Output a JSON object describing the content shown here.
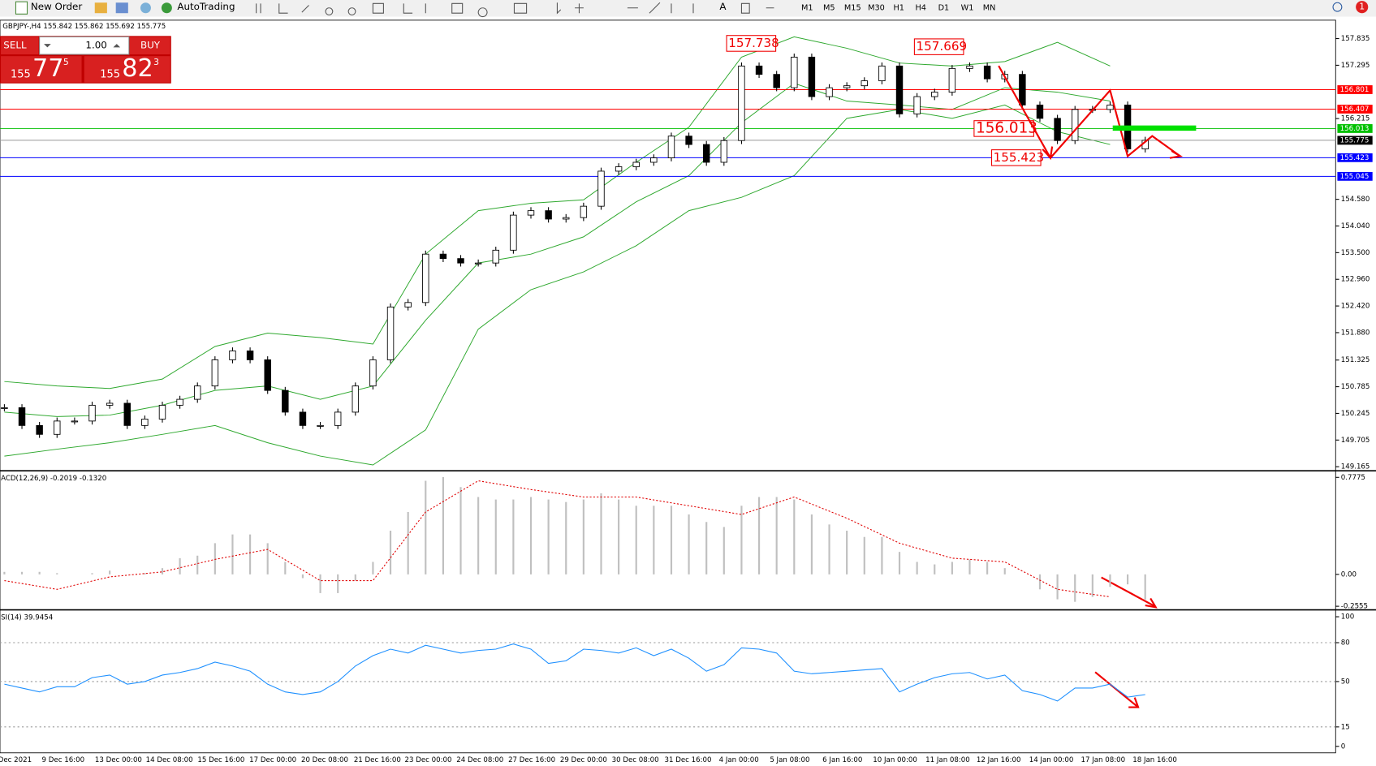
{
  "toolbar": {
    "new_order": "New Order",
    "auto_trading": "AutoTrading",
    "timeframes": [
      "M1",
      "M5",
      "M15",
      "M30",
      "H1",
      "H4",
      "D1",
      "W1",
      "MN"
    ],
    "notifications": "1"
  },
  "chart": {
    "header": "GBPJPY-,H4  155.842 155.862 155.692 155.775",
    "trade_panel": {
      "sell": "SELL",
      "buy": "BUY",
      "lots": "1.00",
      "sell_price": [
        "155",
        "77",
        "5"
      ],
      "buy_price": [
        "155",
        "82",
        "3"
      ]
    },
    "ylim": [
      149.11,
      158.19
    ],
    "yticks": [
      157.835,
      157.295,
      156.215,
      {
        "value": 154.58,
        "label": "154.580"
      },
      {
        "value": 154.04,
        "label": "154.040"
      },
      {
        "value": 153.5,
        "label": "153.500"
      },
      {
        "value": 152.96,
        "label": "152.960"
      },
      {
        "value": 152.42,
        "label": "152.420"
      },
      {
        "value": 151.88,
        "label": "151.880"
      },
      151.325,
      150.785,
      150.245,
      149.705,
      149.165
    ],
    "levels": [
      {
        "value": 156.801,
        "color": "#ff0000"
      },
      {
        "value": 156.407,
        "color": "#ff0000"
      },
      {
        "value": 156.013,
        "color": "#00c000"
      },
      {
        "value": 155.775,
        "color": "#000000"
      },
      {
        "value": 155.423,
        "color": "#0000ff"
      },
      {
        "value": 155.045,
        "color": "#0000ff"
      }
    ],
    "closes": [
      150.36,
      150.0,
      149.82,
      150.09,
      150.09,
      150.41,
      150.45,
      150.0,
      150.13,
      150.41,
      150.53,
      150.8,
      151.33,
      151.51,
      151.33,
      150.71,
      150.27,
      150.0,
      150.0,
      150.27,
      150.8,
      151.33,
      152.4,
      152.49,
      153.47,
      153.38,
      153.29,
      153.29,
      153.55,
      154.26,
      154.35,
      154.18,
      154.21,
      154.44,
      155.15,
      155.24,
      155.33,
      155.42,
      155.86,
      155.69,
      155.33,
      155.77,
      157.28,
      157.11,
      156.84,
      157.46,
      156.66,
      156.84,
      156.88,
      156.98,
      157.28,
      156.31,
      156.66,
      156.75,
      157.23,
      157.28,
      157.02,
      157.11,
      156.49,
      156.22,
      155.77,
      156.4,
      156.4,
      156.49,
      155.6,
      155.775
    ],
    "bands": {
      "upper": [
        150.89,
        150.8,
        150.75,
        150.94,
        151.6,
        151.87,
        151.78,
        151.65,
        153.47,
        154.35,
        154.5,
        154.57,
        155.33,
        156.04,
        157.46,
        157.87,
        157.64,
        157.34,
        157.28,
        157.37,
        157.76,
        157.28
      ],
      "middle": [
        150.27,
        150.18,
        150.21,
        150.41,
        150.71,
        150.8,
        150.53,
        150.8,
        152.13,
        153.29,
        153.47,
        153.82,
        154.53,
        155.06,
        156.13,
        156.93,
        156.57,
        156.49,
        156.4,
        156.84,
        156.75,
        156.57
      ],
      "lower": [
        149.38,
        149.52,
        149.65,
        149.82,
        150.0,
        149.65,
        149.38,
        149.2,
        149.91,
        151.95,
        152.75,
        153.11,
        153.64,
        154.35,
        154.62,
        155.06,
        156.22,
        156.4,
        156.22,
        156.49,
        155.95,
        155.69
      ]
    },
    "annotations": [
      157.738,
      157.669,
      156.013,
      155.423
    ],
    "x_labels": [
      "Dec 2021",
      "9 Dec 16:00",
      "13 Dec 00:00",
      "14 Dec 08:00",
      "15 Dec 16:00",
      "17 Dec 00:00",
      "20 Dec 08:00",
      "21 Dec 16:00",
      "23 Dec 00:00",
      "24 Dec 08:00",
      "27 Dec 16:00",
      "29 Dec 00:00",
      "30 Dec 08:00",
      "31 Dec 16:00",
      "4 Jan 00:00",
      "5 Jan 08:00",
      "6 Jan 16:00",
      "10 Jan 00:00",
      "11 Jan 08:00",
      "12 Jan 16:00",
      "14 Jan 00:00",
      "17 Jan 08:00",
      "18 Jan 16:00"
    ]
  },
  "macd": {
    "label": "ACD(12,26,9) -0.2019 -0.1320",
    "ylim": [
      -0.27,
      0.82
    ],
    "yticks": [
      0.7775,
      {
        "value": 0,
        "label": "0.00"
      },
      -0.2555
    ],
    "histogram": [
      0.02,
      0.02,
      0.02,
      0.01,
      0,
      0.01,
      0.03,
      0,
      0.01,
      0.05,
      0.13,
      0.15,
      0.25,
      0.32,
      0.32,
      0.25,
      0.1,
      -0.03,
      -0.15,
      -0.15,
      -0.05,
      0.1,
      0.35,
      0.5,
      0.75,
      0.78,
      0.7,
      0.62,
      0.6,
      0.6,
      0.62,
      0.6,
      0.58,
      0.6,
      0.65,
      0.6,
      0.55,
      0.55,
      0.55,
      0.48,
      0.42,
      0.38,
      0.55,
      0.62,
      0.62,
      0.6,
      0.48,
      0.4,
      0.35,
      0.3,
      0.3,
      0.18,
      0.1,
      0.08,
      0.1,
      0.12,
      0.1,
      0.05,
      0,
      -0.12,
      -0.2,
      -0.22,
      -0.18,
      -0.1,
      -0.08,
      -0.2019
    ],
    "signal": [
      -0.05,
      -0.12,
      -0.02,
      0.02,
      0.12,
      0.2,
      -0.05,
      -0.05,
      0.5,
      0.75,
      0.68,
      0.62,
      0.62,
      0.55,
      0.48,
      0.62,
      0.45,
      0.25,
      0.13,
      0.1,
      -0.12,
      -0.18
    ]
  },
  "rsi": {
    "label": "SI(14) 39.9454",
    "ylim": [
      -5,
      104
    ],
    "yticks": [
      100,
      80,
      50,
      15,
      0
    ],
    "values": [
      48,
      45,
      42,
      46,
      46,
      53,
      55,
      48,
      50,
      55,
      57,
      60,
      65,
      62,
      58,
      48,
      42,
      40,
      42,
      50,
      62,
      70,
      75,
      72,
      78,
      75,
      72,
      74,
      75,
      79,
      75,
      64,
      66,
      75,
      74,
      72,
      76,
      70,
      75,
      68,
      58,
      63,
      76,
      75,
      72,
      58,
      56,
      57,
      58,
      59,
      60,
      42,
      48,
      53,
      56,
      57,
      52,
      55,
      43,
      40,
      35,
      45,
      45,
      48,
      38,
      39.9454
    ]
  }
}
